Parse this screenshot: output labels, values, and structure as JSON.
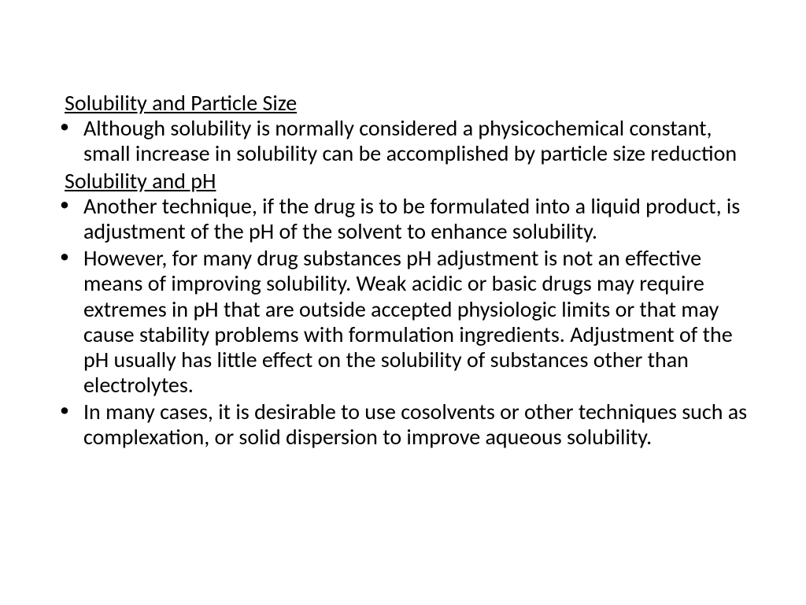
{
  "slide": {
    "heading1": "Solubility and Particle Size",
    "bullet1": "Although solubility is normally considered a physicochemical constant, small increase in solubility can be accomplished by particle size reduction",
    "heading2": "Solubility and pH",
    "bullet2": "Another technique, if the drug is to be formulated into a liquid product, is adjustment of the pH of the solvent to enhance solubility.",
    "bullet3": "However, for many drug substances pH adjustment is not an effective means of improving solubility. Weak acidic or basic drugs may require extremes in pH that are outside accepted physiologic limits or that may cause stability problems with formulation ingredients. Adjustment of the pH usually has little effect on the solubility of substances other than electrolytes.",
    "bullet4": " In many cases, it is desirable to use cosolvents or other techniques such as complexation, or solid dispersion to improve aqueous solubility."
  },
  "styles": {
    "background_color": "#ffffff",
    "text_color": "#000000",
    "font_family": "Calibri",
    "body_fontsize": 28,
    "line_height": 1.15
  }
}
